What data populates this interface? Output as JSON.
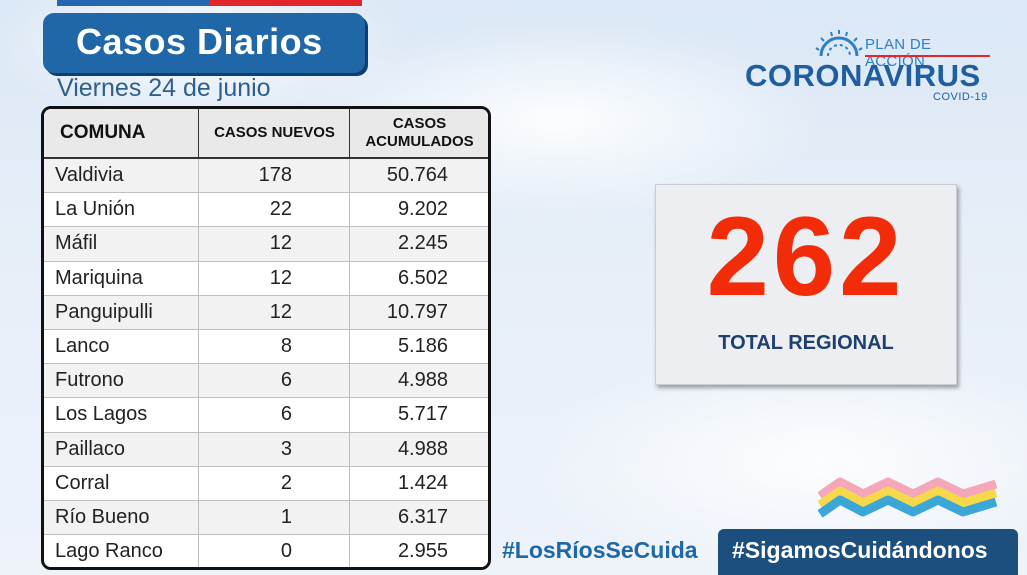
{
  "header": {
    "title": "Casos Diarios",
    "date": "Viernes 24 de junio"
  },
  "table": {
    "columns": [
      "COMUNA",
      "CASOS NUEVOS",
      "CASOS ACUMULADOS"
    ],
    "rows": [
      {
        "comuna": "Valdivia",
        "nuevos": "178",
        "acumulados": "50.764"
      },
      {
        "comuna": "La Unión",
        "nuevos": "22",
        "acumulados": "9.202"
      },
      {
        "comuna": "Máfil",
        "nuevos": "12",
        "acumulados": "2.245"
      },
      {
        "comuna": "Mariquina",
        "nuevos": "12",
        "acumulados": "6.502"
      },
      {
        "comuna": "Panguipulli",
        "nuevos": "12",
        "acumulados": "10.797"
      },
      {
        "comuna": "Lanco",
        "nuevos": "8",
        "acumulados": "5.186"
      },
      {
        "comuna": "Futrono",
        "nuevos": "6",
        "acumulados": "4.988"
      },
      {
        "comuna": "Los Lagos",
        "nuevos": "6",
        "acumulados": "5.717"
      },
      {
        "comuna": "Paillaco",
        "nuevos": "3",
        "acumulados": "4.988"
      },
      {
        "comuna": "Corral",
        "nuevos": "2",
        "acumulados": "1.424"
      },
      {
        "comuna": "Río Bueno",
        "nuevos": "1",
        "acumulados": "6.317"
      },
      {
        "comuna": "Lago Ranco",
        "nuevos": "0",
        "acumulados": "2.955"
      }
    ]
  },
  "logo": {
    "plan": "PLAN DE ACCIÓN",
    "main": "CORONAVIRUS",
    "sub": "COVID-19",
    "icon": "virus-icon"
  },
  "total": {
    "value": "262",
    "label": "TOTAL REGIONAL"
  },
  "footer": {
    "hashtag_left": "#LosRíosSeCuida",
    "hashtag_right": "#SigamosCuidándonos",
    "decoration_icon": "rainbow-waves-icon"
  },
  "colors": {
    "title_bg": "#1f67a6",
    "total_number": "#f22b08",
    "brand_blue": "#1f5fa0",
    "flag_red": "#e3262b"
  }
}
